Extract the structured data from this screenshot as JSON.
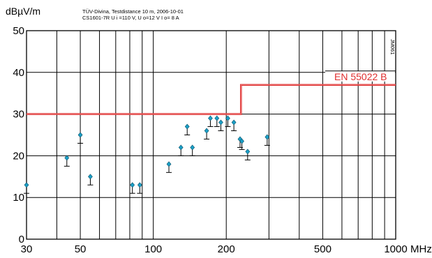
{
  "chart_data": {
    "type": "scatter",
    "title_line1": "TÜV-Divina, Testdistance 10 m, 2006-10-01",
    "title_line2": "CS1601-7R U i =110 V, U o=12 V I o= 8 A",
    "ylabel": "dBµV/m",
    "xunit": "MHz",
    "side_label": "JM061",
    "x_scale": "log",
    "xlim": [
      30,
      1000
    ],
    "ylim": [
      0,
      50
    ],
    "grid": true,
    "x_ticks": [
      {
        "value": 30,
        "label": "30"
      },
      {
        "value": 50,
        "label": "50"
      },
      {
        "value": 100,
        "label": "100"
      },
      {
        "value": 200,
        "label": "200"
      },
      {
        "value": 500,
        "label": "500"
      },
      {
        "value": 1000,
        "label": "1000"
      }
    ],
    "x_grid": [
      40,
      50,
      60,
      70,
      80,
      90,
      100,
      200,
      300,
      400,
      500,
      600,
      700,
      800,
      900
    ],
    "y_ticks": [
      0,
      10,
      20,
      30,
      40,
      50
    ],
    "limit": {
      "name": "EN 55022 B",
      "color": "#e03030",
      "segments": [
        {
          "x": [
            30,
            230
          ],
          "y": 30
        },
        {
          "x": [
            230,
            1000
          ],
          "y": 37
        }
      ]
    },
    "marker_color": "#1aa0c8",
    "points": [
      {
        "x": 30,
        "y": 13,
        "err": 2
      },
      {
        "x": 44,
        "y": 19.5,
        "err": 2
      },
      {
        "x": 50,
        "y": 25,
        "err": 2
      },
      {
        "x": 55,
        "y": 15,
        "err": 2
      },
      {
        "x": 82,
        "y": 13,
        "err": 2
      },
      {
        "x": 88,
        "y": 13,
        "err": 2
      },
      {
        "x": 116,
        "y": 18,
        "err": 2
      },
      {
        "x": 130,
        "y": 22,
        "err": 2
      },
      {
        "x": 138,
        "y": 27,
        "err": 2
      },
      {
        "x": 145,
        "y": 22,
        "err": 2
      },
      {
        "x": 166,
        "y": 26,
        "err": 2
      },
      {
        "x": 172,
        "y": 29,
        "err": 2
      },
      {
        "x": 183,
        "y": 29,
        "err": 2
      },
      {
        "x": 190,
        "y": 28,
        "err": 2
      },
      {
        "x": 203,
        "y": 29,
        "err": 2
      },
      {
        "x": 215,
        "y": 28,
        "err": 2
      },
      {
        "x": 228,
        "y": 24,
        "err": 2
      },
      {
        "x": 232,
        "y": 23.5,
        "err": 2
      },
      {
        "x": 245,
        "y": 21,
        "err": 2
      },
      {
        "x": 295,
        "y": 24.5,
        "err": 2
      }
    ]
  }
}
